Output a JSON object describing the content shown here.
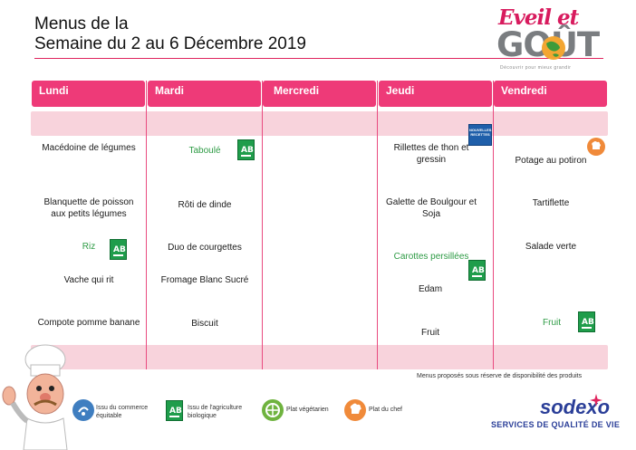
{
  "header": {
    "title_line1": "Menus de la",
    "title_line2": "Semaine du 2 au 6 Décembre 2019"
  },
  "logo": {
    "line1": "Eveil et",
    "line2": "GOÛT",
    "tagline": "Découvrir pour mieux grandir"
  },
  "days": [
    "Lundi",
    "Mardi",
    "Mercredi",
    "Jeudi",
    "Vendredi"
  ],
  "menu": {
    "lundi": [
      "Macédoine de légumes",
      "Blanquette de poisson aux petits légumes",
      "Riz",
      "Vache qui rit",
      "Compote pomme banane"
    ],
    "mardi": [
      "Taboulé",
      "Rôti de dinde",
      "Duo de courgettes",
      "Fromage Blanc Sucré",
      "Biscuit"
    ],
    "jeudi": [
      "Rillettes de thon et gressin",
      "Galette de Boulgour et Soja",
      "Carottes persillées",
      "Edam",
      "Fruit"
    ],
    "vendredi": [
      "Potage au potiron",
      "Tartiflette",
      "Salade verte",
      "Fruit"
    ]
  },
  "badges": {
    "ab": "AB",
    "nouvelles_recettes": "NOUVELLES RECETTES"
  },
  "disclaimer": "Menus proposés sous réserve de disponibilité des produits",
  "legend": {
    "commerce": "Issu du commerce équitable",
    "bio": "Issu de l'agriculture biologique",
    "vege": "Plat végétarien",
    "chef": "Plat du chef"
  },
  "brand": {
    "name": "sodexo",
    "tagline": "SERVICES DE QUALITÉ DE VIE"
  },
  "colors": {
    "accent_pink": "#ee3a78",
    "band_pink": "#f8d3dc",
    "bio_green": "#1f9d4b",
    "sodexo_blue": "#2a3e98"
  }
}
